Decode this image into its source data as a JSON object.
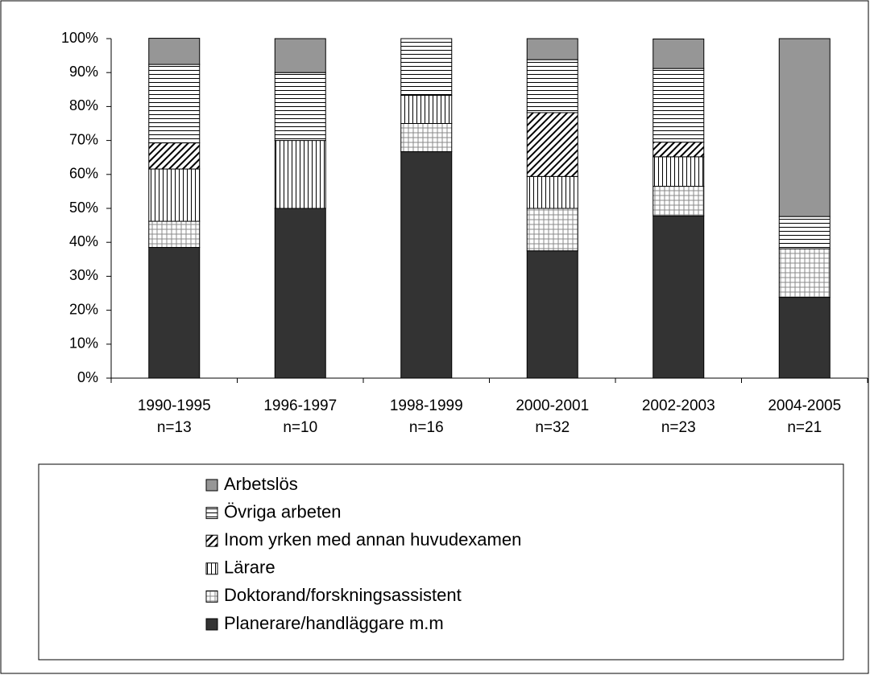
{
  "chart_data": {
    "type": "stacked_bar",
    "categories": [
      "1990-1995",
      "1996-1997",
      "1998-1999",
      "2000-2001",
      "2002-2003",
      "2004-2005"
    ],
    "category_counts": [
      "n=13",
      "n=10",
      "n=16",
      "n=32",
      "n=23",
      "n=21"
    ],
    "series": [
      {
        "name": "Planerare/handläggare m.m",
        "color": "#333333",
        "pattern": "solid",
        "values": [
          38.5,
          50,
          66.7,
          37.5,
          47.8,
          23.8
        ]
      },
      {
        "name": "Doktorand/forskningsassistent",
        "color": "#000000",
        "pattern": "grid",
        "values": [
          7.7,
          0,
          8.3,
          12.5,
          8.7,
          14.3
        ]
      },
      {
        "name": "Lärare",
        "color": "#000000",
        "pattern": "vertical",
        "values": [
          15.4,
          20,
          8.3,
          9.4,
          8.7,
          0
        ]
      },
      {
        "name": "Inom yrken med annan huvudexamen",
        "color": "#000000",
        "pattern": "diagonal",
        "values": [
          7.7,
          0,
          0,
          18.8,
          4.3,
          0
        ]
      },
      {
        "name": "Övriga arbeten",
        "color": "#000000",
        "pattern": "horizontal",
        "values": [
          23.1,
          20,
          16.7,
          15.6,
          21.7,
          9.5
        ]
      },
      {
        "name": "Arbetslös",
        "color": "#969696",
        "pattern": "solid",
        "values": [
          7.7,
          10,
          0,
          6.2,
          8.7,
          52.4
        ]
      }
    ],
    "ylim": [
      0,
      100
    ],
    "yticks": [
      {
        "value": 0,
        "label": "0%"
      },
      {
        "value": 10,
        "label": "10%"
      },
      {
        "value": 20,
        "label": "20%"
      },
      {
        "value": 30,
        "label": "30%"
      },
      {
        "value": 40,
        "label": "40%"
      },
      {
        "value": 50,
        "label": "50%"
      },
      {
        "value": 60,
        "label": "60%"
      },
      {
        "value": 70,
        "label": "70%"
      },
      {
        "value": 80,
        "label": "80%"
      },
      {
        "value": 90,
        "label": "90%"
      },
      {
        "value": 100,
        "label": "100%"
      }
    ],
    "legend": "bottom",
    "legend_order": "reversed"
  }
}
